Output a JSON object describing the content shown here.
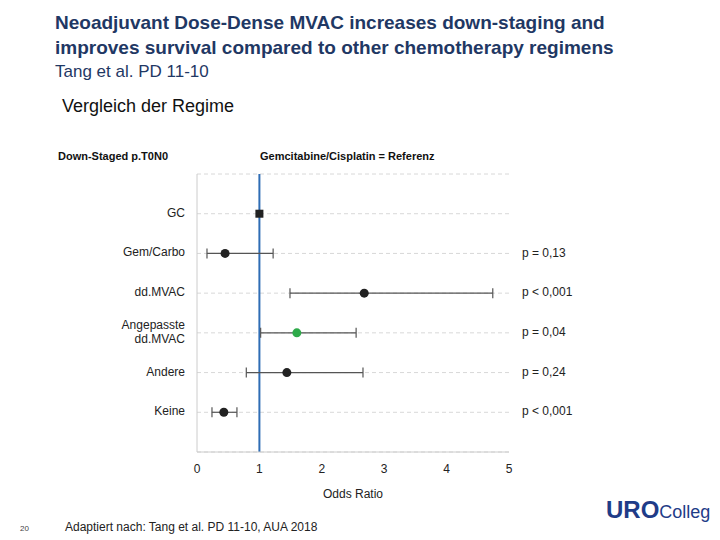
{
  "chart_data": {
    "type": "forest",
    "title": [
      "Neoadjuvant Dose-Dense MVAC increases down-staging and",
      "improves survival compared to other chemotherapy regimens"
    ],
    "subtitle": "Tang et al. PD 11-10",
    "heading": "Vergleich der Regime",
    "outcome_label": "Down-Staged p.T0N0",
    "reference_label": "Gemcitabine/Cisplatin = Referenz",
    "categories": [
      "GC",
      "Gem/Carbo",
      "dd.MVAC",
      "Angepasste dd.MVAC",
      "Andere",
      "Keine"
    ],
    "values": [
      1,
      0.45,
      2.68,
      1.6,
      1.44,
      0.43
    ],
    "ci_low": [
      null,
      0.16,
      1.49,
      1.02,
      0.79,
      0.24
    ],
    "ci_high": [
      null,
      1.22,
      4.74,
      2.55,
      2.66,
      0.64
    ],
    "p_values": [
      null,
      "p = 0,13",
      "p < 0,001",
      "p = 0,04",
      "p = 0,24",
      "p < 0,001"
    ],
    "colors": [
      "#222222",
      "#222222",
      "#222222",
      "#2eaa4a",
      "#222222",
      "#222222"
    ],
    "reference_line": 1,
    "x_label": "Odds Ratio",
    "xlim": [
      0,
      5
    ],
    "xticks": [
      0,
      1,
      2,
      3,
      4,
      5
    ],
    "grid": true,
    "source": "Adaptiert nach: Tang et al. PD 11-10, AUA 2018",
    "page": 20,
    "logo": [
      "URO",
      "Colleg"
    ]
  }
}
